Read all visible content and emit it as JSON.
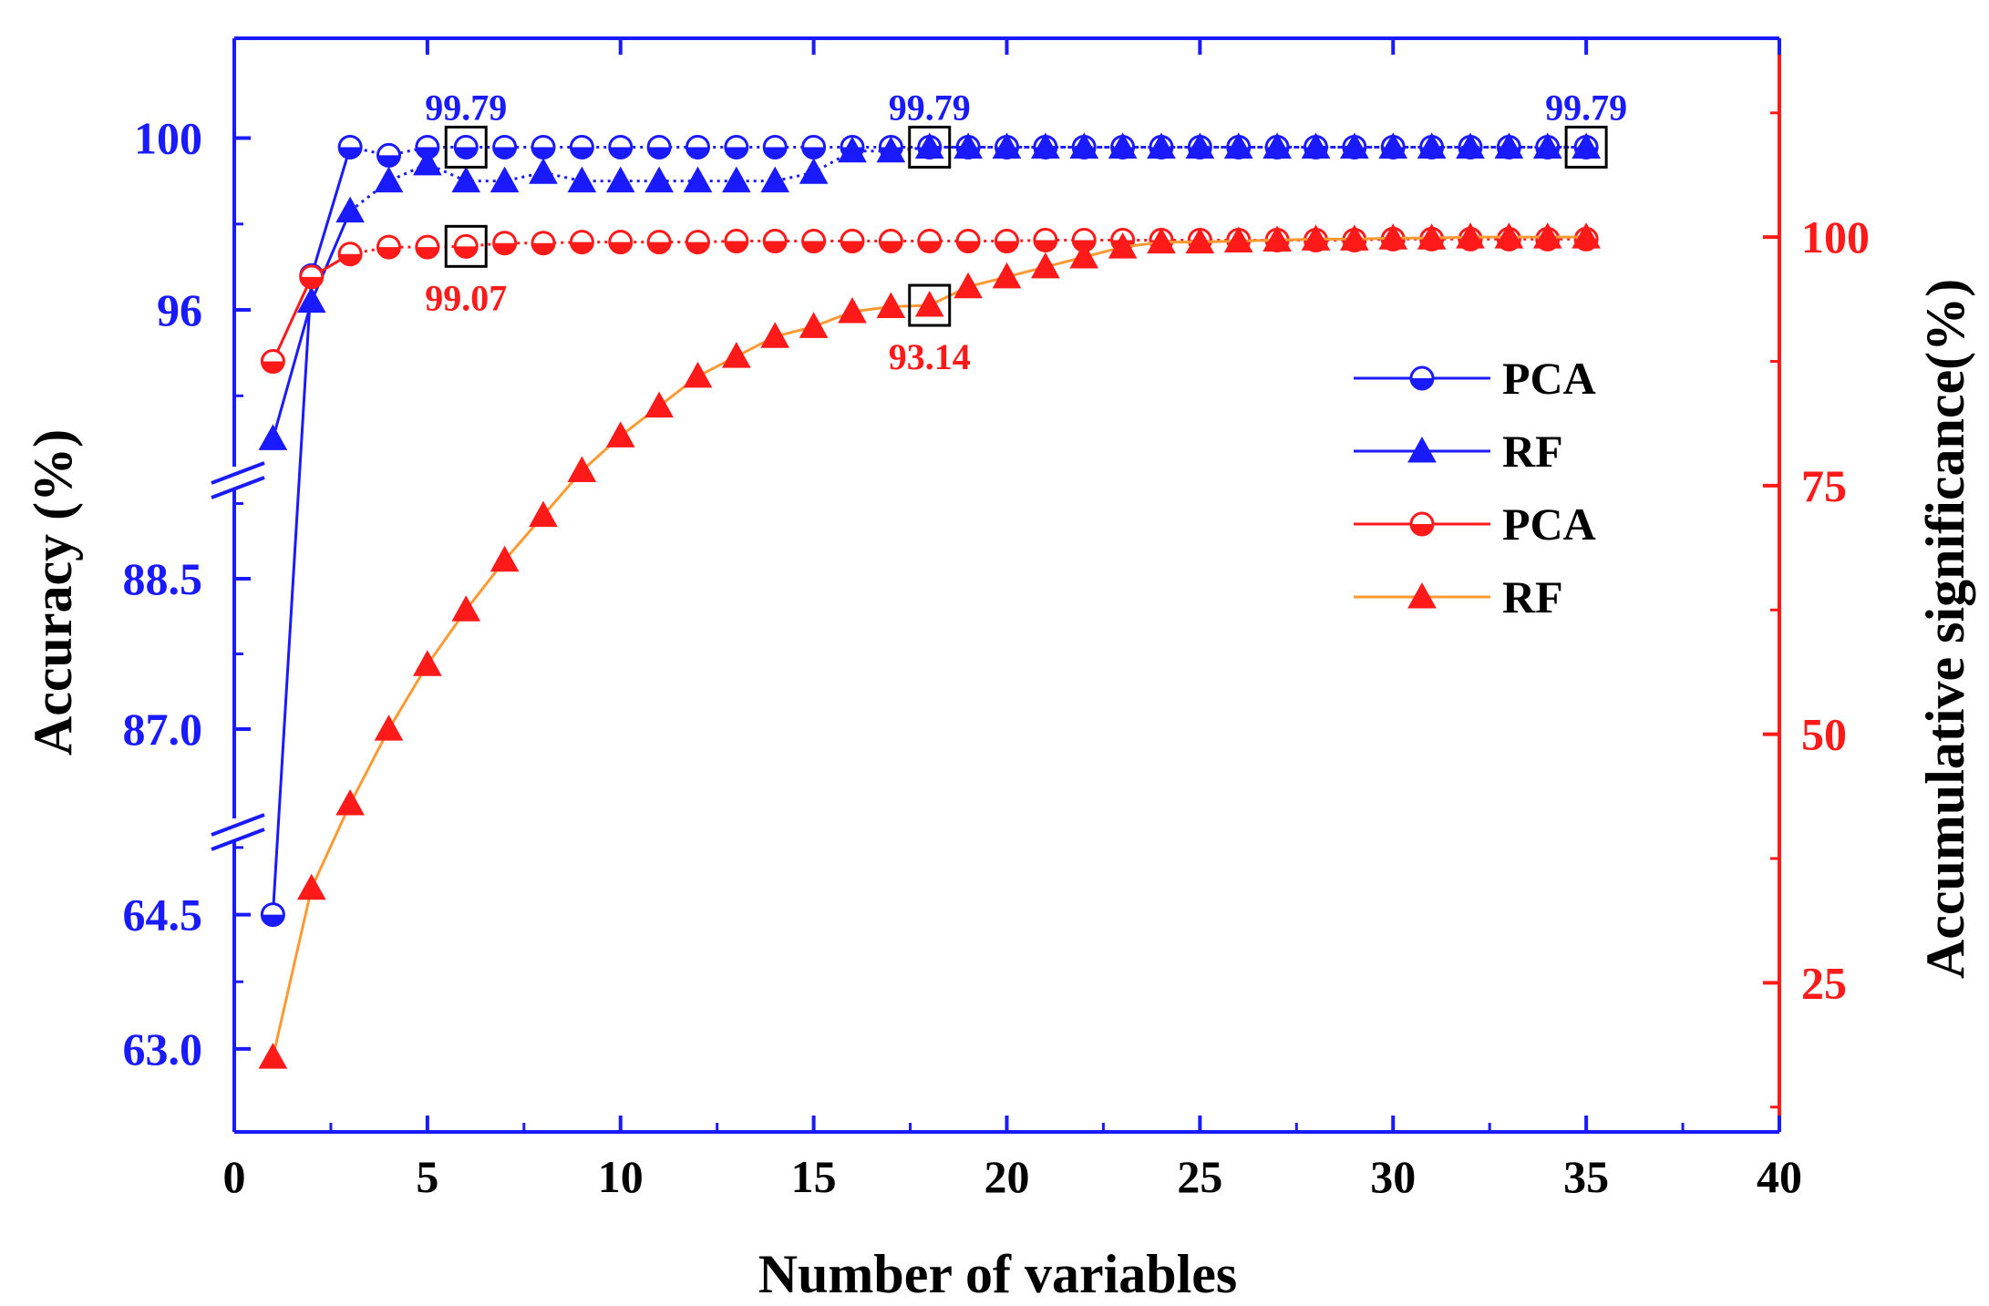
{
  "chart_data": {
    "type": "line",
    "title": "",
    "xlabel": "Number of  variables",
    "ylabel_left": "Accuracy (%)",
    "ylabel_right": "Accumulative significance(%)",
    "xlim": [
      0,
      40
    ],
    "x_ticks": [
      "0",
      "5",
      "10",
      "15",
      "20",
      "25",
      "30",
      "35",
      "40"
    ],
    "left_axis": {
      "broken": true,
      "tick_labels": [
        "63.0",
        "64.5",
        "87.0",
        "88.5",
        "96",
        "100"
      ]
    },
    "right_axis": {
      "ylim": [
        10,
        120
      ],
      "tick_labels": [
        "25",
        "50",
        "75",
        "100"
      ]
    },
    "colors": {
      "left_axis": "#1a1aff",
      "right_axis": "#ff1a1a",
      "rf_significance_line": "#ff9a33"
    },
    "series": [
      {
        "name": "PCA",
        "axis": "left",
        "marker": "half-circle",
        "color": "#1a1aff",
        "x": [
          1,
          2,
          3,
          4,
          5,
          6,
          7,
          8,
          9,
          10,
          11,
          12,
          13,
          14,
          15,
          16,
          17,
          18,
          19,
          20,
          21,
          22,
          23,
          24,
          25,
          26,
          27,
          28,
          29,
          30,
          31,
          32,
          33,
          34,
          35
        ],
        "values": [
          64.5,
          96.8,
          99.79,
          99.6,
          99.79,
          99.79,
          99.79,
          99.79,
          99.79,
          99.79,
          99.79,
          99.79,
          99.79,
          99.79,
          99.79,
          99.79,
          99.79,
          99.79,
          99.79,
          99.79,
          99.79,
          99.79,
          99.79,
          99.79,
          99.79,
          99.79,
          99.79,
          99.79,
          99.79,
          99.79,
          99.79,
          99.79,
          99.79,
          99.79,
          99.79
        ]
      },
      {
        "name": "RF",
        "axis": "left",
        "marker": "triangle",
        "color": "#1a1aff",
        "x": [
          1,
          2,
          3,
          4,
          5,
          6,
          7,
          8,
          9,
          10,
          11,
          12,
          13,
          14,
          15,
          16,
          17,
          18,
          19,
          20,
          21,
          22,
          23,
          24,
          25,
          26,
          27,
          28,
          29,
          30,
          31,
          32,
          33,
          34,
          35
        ],
        "values": [
          93.0,
          96.2,
          98.3,
          99.0,
          99.4,
          99.0,
          99.0,
          99.2,
          99.0,
          99.0,
          99.0,
          99.0,
          99.0,
          99.0,
          99.2,
          99.7,
          99.7,
          99.79,
          99.79,
          99.79,
          99.79,
          99.79,
          99.79,
          99.79,
          99.79,
          99.79,
          99.79,
          99.79,
          99.79,
          99.79,
          99.79,
          99.79,
          99.79,
          99.79,
          99.79
        ]
      },
      {
        "name": "PCA",
        "axis": "right",
        "marker": "half-circle",
        "color": "#ff1a1a",
        "x": [
          1,
          2,
          3,
          4,
          5,
          6,
          7,
          8,
          9,
          10,
          11,
          12,
          13,
          14,
          15,
          16,
          17,
          18,
          19,
          20,
          21,
          22,
          23,
          24,
          25,
          26,
          27,
          28,
          29,
          30,
          31,
          32,
          33,
          34,
          35
        ],
        "values": [
          87.5,
          96.0,
          98.3,
          99.0,
          99.0,
          99.07,
          99.4,
          99.4,
          99.5,
          99.5,
          99.5,
          99.5,
          99.6,
          99.6,
          99.6,
          99.6,
          99.6,
          99.6,
          99.6,
          99.6,
          99.7,
          99.7,
          99.7,
          99.7,
          99.7,
          99.7,
          99.7,
          99.7,
          99.7,
          99.8,
          99.8,
          99.8,
          99.8,
          99.8,
          99.8
        ]
      },
      {
        "name": "RF",
        "axis": "right",
        "marker": "triangle",
        "color": "#ff1a1a",
        "x": [
          1,
          2,
          3,
          4,
          5,
          6,
          7,
          8,
          9,
          10,
          11,
          12,
          13,
          14,
          15,
          16,
          17,
          18,
          19,
          20,
          21,
          22,
          23,
          24,
          25,
          26,
          27,
          28,
          29,
          30,
          31,
          32,
          33,
          34,
          35
        ],
        "values": [
          17.5,
          34.5,
          43.0,
          50.5,
          57.0,
          62.5,
          67.5,
          72.0,
          76.5,
          80.0,
          83.0,
          86.0,
          88.0,
          90.0,
          91.0,
          92.5,
          93.0,
          93.14,
          95.0,
          96.0,
          97.0,
          98.0,
          99.0,
          99.5,
          99.5,
          99.6,
          99.7,
          99.8,
          99.8,
          99.9,
          99.9,
          100.0,
          100.0,
          100.0,
          100.0
        ]
      }
    ],
    "annotations": [
      {
        "text": "99.79",
        "x": 6,
        "value": 99.79,
        "axis": "left",
        "position": "above"
      },
      {
        "text": "99.79",
        "x": 18,
        "value": 99.79,
        "axis": "left",
        "position": "above"
      },
      {
        "text": "99.79",
        "x": 35,
        "value": 99.79,
        "axis": "left",
        "position": "above"
      },
      {
        "text": "99.07",
        "x": 6,
        "value": 99.07,
        "axis": "right",
        "position": "below"
      },
      {
        "text": "93.14",
        "x": 18,
        "value": 93.14,
        "axis": "right",
        "position": "below"
      }
    ],
    "legend": {
      "position": "right",
      "entries": [
        "PCA",
        "RF",
        "PCA",
        "RF"
      ]
    }
  }
}
